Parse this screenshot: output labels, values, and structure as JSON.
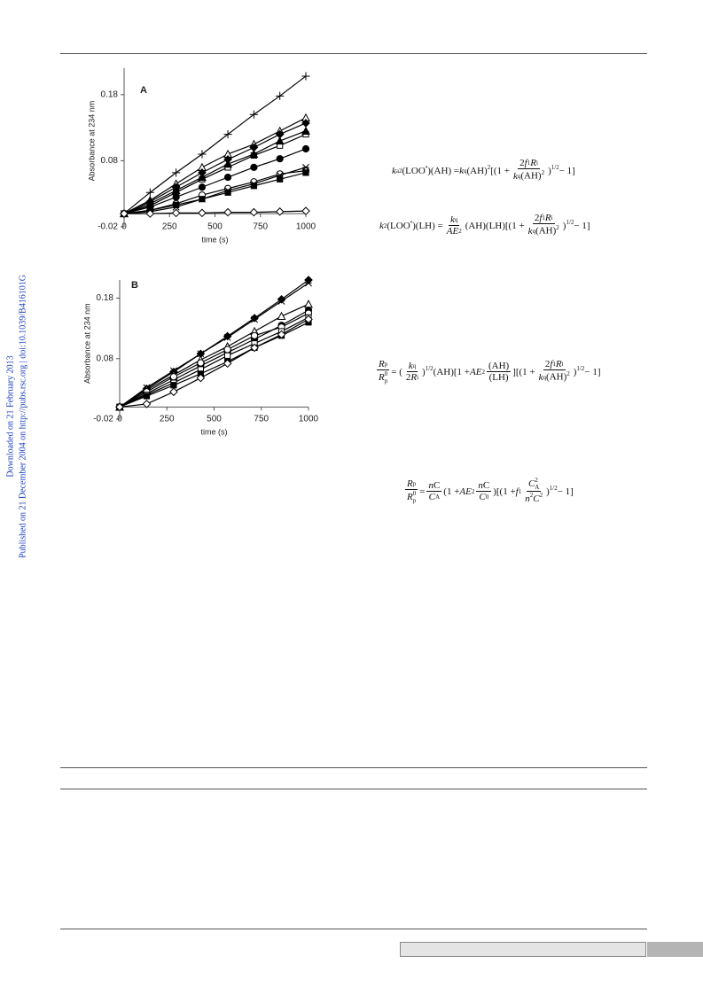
{
  "sidebar": [
    "Downloaded on 21 February 2013",
    "Published on 21 December 2004 on http://pubs.rsc.org | doi:10.1039/B416101G"
  ],
  "chart_data": [
    {
      "type": "line",
      "panel_label": "A",
      "ylabel": "Absorbance at 234 nm",
      "xlabel": "time (s)",
      "x": [
        0,
        143,
        286,
        429,
        571,
        714,
        857,
        1000
      ],
      "xlim": [
        0,
        1000
      ],
      "xticks": [
        0,
        250,
        500,
        750,
        1000
      ],
      "ylim": [
        -0.02,
        0.22
      ],
      "yticks": [
        -0.02,
        0.08,
        0.18
      ],
      "series": [
        {
          "marker": "plus",
          "color": "#000000",
          "values": [
            0,
            0.032,
            0.062,
            0.09,
            0.12,
            0.15,
            0.178,
            0.208
          ]
        },
        {
          "marker": "triangle-open",
          "color": "#000000",
          "values": [
            0,
            0.02,
            0.045,
            0.07,
            0.09,
            0.105,
            0.125,
            0.145
          ]
        },
        {
          "marker": "diamond-filled",
          "color": "#000000",
          "values": [
            0,
            0.018,
            0.04,
            0.062,
            0.082,
            0.1,
            0.12,
            0.137
          ]
        },
        {
          "marker": "square-open",
          "color": "#000000",
          "values": [
            0,
            0.012,
            0.032,
            0.052,
            0.07,
            0.088,
            0.103,
            0.12
          ]
        },
        {
          "marker": "triangle-filled",
          "color": "#000000",
          "values": [
            0,
            0.015,
            0.035,
            0.055,
            0.075,
            0.09,
            0.11,
            0.125
          ]
        },
        {
          "marker": "circle-filled",
          "color": "#000000",
          "values": [
            0,
            0.01,
            0.025,
            0.04,
            0.055,
            0.07,
            0.083,
            0.098
          ]
        },
        {
          "marker": "circle-open",
          "color": "#000000",
          "values": [
            0,
            0.005,
            0.015,
            0.028,
            0.038,
            0.048,
            0.06,
            0.065
          ]
        },
        {
          "marker": "asterisk",
          "color": "#000000",
          "values": [
            0,
            0.003,
            0.01,
            0.022,
            0.035,
            0.045,
            0.058,
            0.07
          ]
        },
        {
          "marker": "square-filled",
          "color": "#000000",
          "values": [
            0,
            0.005,
            0.013,
            0.022,
            0.032,
            0.042,
            0.052,
            0.062
          ]
        },
        {
          "marker": "diamond-open",
          "color": "#000000",
          "values": [
            0,
            0,
            0.001,
            0.001,
            0.002,
            0.002,
            0.003,
            0.004
          ]
        }
      ]
    },
    {
      "type": "line",
      "panel_label": "B",
      "ylabel": "Absorbance at 234 nm",
      "xlabel": "time (s)",
      "x": [
        0,
        143,
        286,
        429,
        571,
        714,
        857,
        1000
      ],
      "xlim": [
        0,
        1000
      ],
      "xticks": [
        0,
        250,
        500,
        750,
        1000
      ],
      "ylim": [
        -0.02,
        0.21
      ],
      "yticks": [
        -0.02,
        0.08,
        0.18
      ],
      "series": [
        {
          "marker": "diamond-filled",
          "color": "#000000",
          "values": [
            0,
            0.03,
            0.058,
            0.088,
            0.117,
            0.147,
            0.178,
            0.21
          ]
        },
        {
          "marker": "asterisk",
          "color": "#000000",
          "values": [
            0,
            0.032,
            0.06,
            0.088,
            0.115,
            0.145,
            0.175,
            0.205
          ]
        },
        {
          "marker": "triangle-open",
          "color": "#000000",
          "values": [
            0,
            0.028,
            0.053,
            0.078,
            0.1,
            0.125,
            0.15,
            0.17
          ]
        },
        {
          "marker": "circle-filled",
          "color": "#000000",
          "values": [
            0,
            0.022,
            0.045,
            0.068,
            0.09,
            0.112,
            0.135,
            0.16
          ]
        },
        {
          "marker": "circle-open",
          "color": "#000000",
          "values": [
            0,
            0.025,
            0.05,
            0.073,
            0.095,
            0.118,
            0.132,
            0.155
          ]
        },
        {
          "marker": "square-open",
          "color": "#000000",
          "values": [
            0,
            0.02,
            0.04,
            0.062,
            0.085,
            0.105,
            0.125,
            0.148
          ]
        },
        {
          "marker": "square-filled",
          "color": "#000000",
          "values": [
            0,
            0.018,
            0.036,
            0.055,
            0.075,
            0.098,
            0.118,
            0.14
          ]
        },
        {
          "marker": "diamond-open",
          "color": "#000000",
          "values": [
            0,
            0.005,
            0.025,
            0.048,
            0.072,
            0.098,
            0.12,
            0.145
          ]
        }
      ]
    }
  ],
  "equations": [
    [
      {
        "b": "k",
        "sub": "a2"
      },
      "(LOO",
      {
        "sup": "•"
      },
      ")(AH) = ",
      {
        "b": "k",
        "sub": "q"
      },
      "(AH)",
      {
        "sup": "2"
      },
      "[(1 + ",
      {
        "num": [
          "2",
          {
            "b": "f",
            "sub": "1"
          },
          {
            "b": "R",
            "sub": "i"
          }
        ],
        "den": [
          {
            "b": "k",
            "sub": "q"
          },
          "(AH)",
          {
            "sup": "2"
          }
        ]
      },
      ")",
      {
        "sup": "1/2"
      },
      " − 1]"
    ],
    [
      {
        "b": "k",
        "sub": "2"
      },
      "(LOO",
      {
        "sup": "•"
      },
      ")(LH) = ",
      {
        "num": [
          {
            "b": "k",
            "sub": "q"
          }
        ],
        "den": [
          {
            "b": "AE",
            "sub": "2"
          }
        ]
      },
      "(AH)(LH)[(1 + ",
      {
        "num": [
          "2",
          {
            "b": "f",
            "sub": "1"
          },
          {
            "b": "R",
            "sub": "i"
          }
        ],
        "den": [
          {
            "b": "k",
            "sub": "q"
          },
          "(AH)",
          {
            "sup": "2"
          }
        ]
      },
      ")",
      {
        "sup": "1/2"
      },
      " − 1]"
    ],
    [
      {
        "num": [
          {
            "b": "R",
            "sub": "p"
          }
        ],
        "den": [
          {
            "b": "R",
            "sub": "p",
            "sup": "0"
          }
        ]
      },
      " = (",
      {
        "num": [
          {
            "b": "k",
            "sub": "q"
          }
        ],
        "den": [
          "2",
          {
            "b": "R",
            "sub": "i"
          }
        ]
      },
      ")",
      {
        "sup": "1/2"
      },
      " (AH)[1 + ",
      {
        "b": "AE",
        "sub": "2"
      },
      {
        "num": [
          "(AH)"
        ],
        "den": [
          "(LH)"
        ]
      },
      "][(1 + ",
      {
        "num": [
          "2",
          {
            "b": "f",
            "sub": "1"
          },
          {
            "b": "R",
            "sub": "i"
          }
        ],
        "den": [
          {
            "b": "k",
            "sub": "q"
          },
          "(AH)",
          {
            "sup": "2"
          }
        ]
      },
      ")",
      {
        "sup": "1/2"
      },
      " − 1]"
    ],
    [
      {
        "num": [
          {
            "b": "R",
            "sub": "p"
          }
        ],
        "den": [
          {
            "b": "R",
            "sub": "p",
            "sup": "0"
          }
        ]
      },
      " = ",
      {
        "num": [
          {
            "b": "n"
          },
          "C"
        ],
        "den": [
          {
            "b": "C",
            "sub": "A"
          }
        ]
      },
      "(1 + ",
      {
        "b": "AE",
        "sub": "2"
      },
      {
        "num": [
          {
            "b": "n"
          },
          "C"
        ],
        "den": [
          {
            "b": "C",
            "sub": "0"
          }
        ]
      },
      ")[(1 + ",
      {
        "b": "f",
        "sub": "1"
      },
      {
        "num": [
          {
            "b": "C",
            "sub": "A",
            "sup": "2"
          }
        ],
        "den": [
          {
            "b": "n",
            "sup": "2"
          },
          {
            "b": "C",
            "sup": "2"
          }
        ]
      },
      ")",
      {
        "sup": "1/2"
      },
      " − 1]"
    ]
  ]
}
